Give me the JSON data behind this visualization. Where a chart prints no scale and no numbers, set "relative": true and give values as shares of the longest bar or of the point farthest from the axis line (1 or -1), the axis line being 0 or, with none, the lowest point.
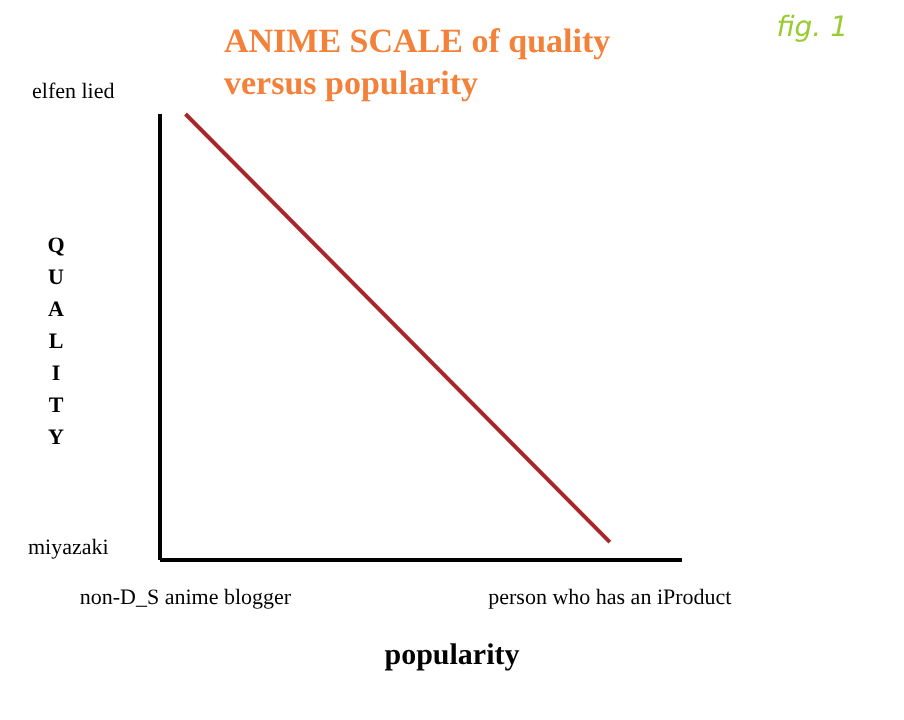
{
  "chart_data": {
    "type": "line",
    "title": "ANIME SCALE of quality versus popularity",
    "xlabel": "popularity",
    "ylabel": "QUALITY",
    "relative": true,
    "categories": [
      "non-D_S anime blogger",
      "person who has an iProduct"
    ],
    "series": [
      {
        "color": "#a8262a",
        "values": [
          1,
          0.04
        ]
      }
    ],
    "annotations": [
      "elfen lied",
      "miyazaki",
      "fig. 1"
    ],
    "grid": false,
    "legend": false,
    "marker": "none",
    "line_style": "solid"
  }
}
